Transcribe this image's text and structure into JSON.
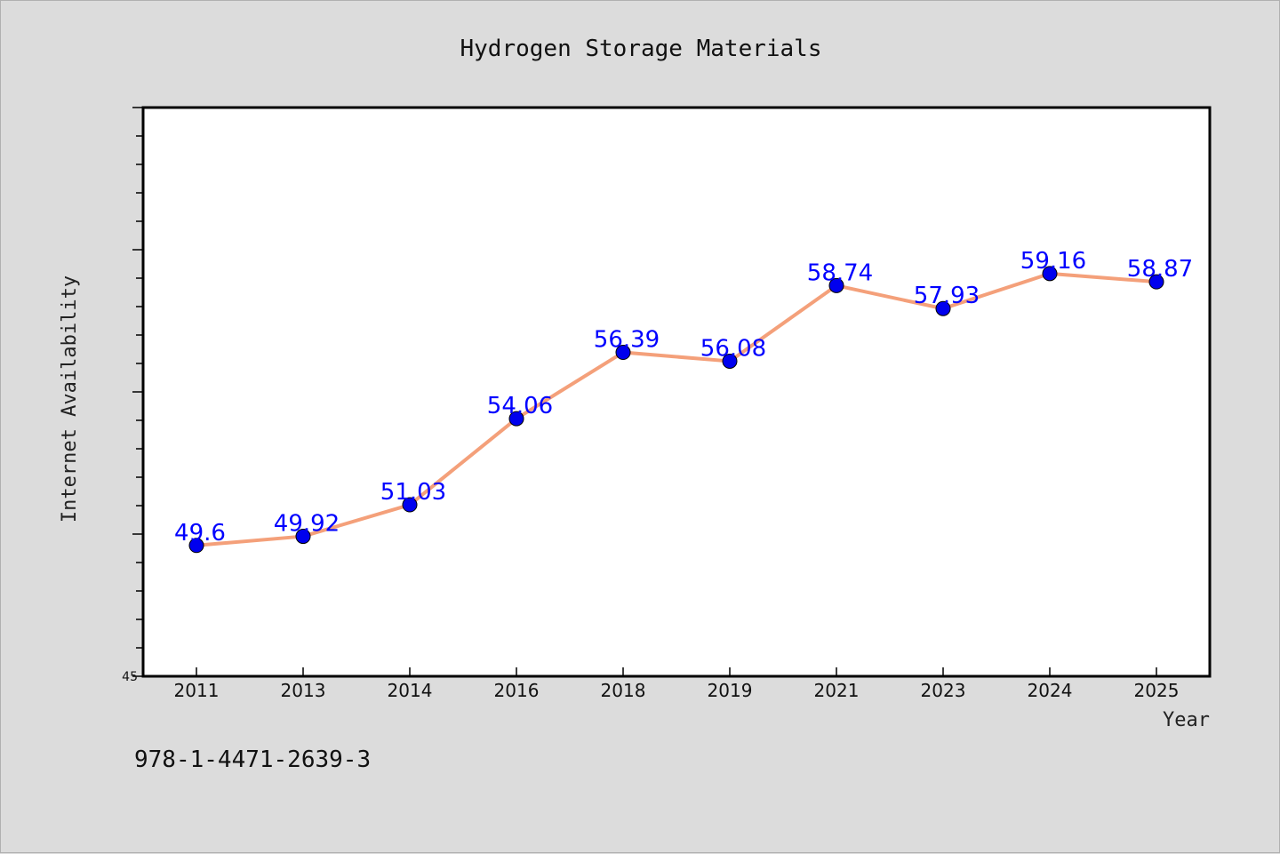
{
  "chart_data": {
    "type": "line",
    "title": "Hydrogen Storage Materials",
    "xlabel": "Year",
    "ylabel": "Internet Availability",
    "categories": [
      "2011",
      "2013",
      "2014",
      "2016",
      "2018",
      "2019",
      "2021",
      "2023",
      "2024",
      "2025"
    ],
    "values": [
      49.6,
      49.92,
      51.03,
      54.06,
      56.39,
      56.08,
      58.74,
      57.93,
      59.16,
      58.87
    ],
    "data_labels": [
      "49.6",
      "49.92",
      "51.03",
      "54.06",
      "56.39",
      "56.08",
      "58.74",
      "57.93",
      "59.16",
      "58.87"
    ],
    "ylim": [
      45,
      65
    ],
    "y_tick_labels": [
      "45"
    ],
    "grid": false,
    "line_color": "#f4a07a",
    "marker_color": "#0000ee",
    "label_color": "#0000ff"
  },
  "footer": {
    "isbn": "978-1-4471-2639-3"
  }
}
